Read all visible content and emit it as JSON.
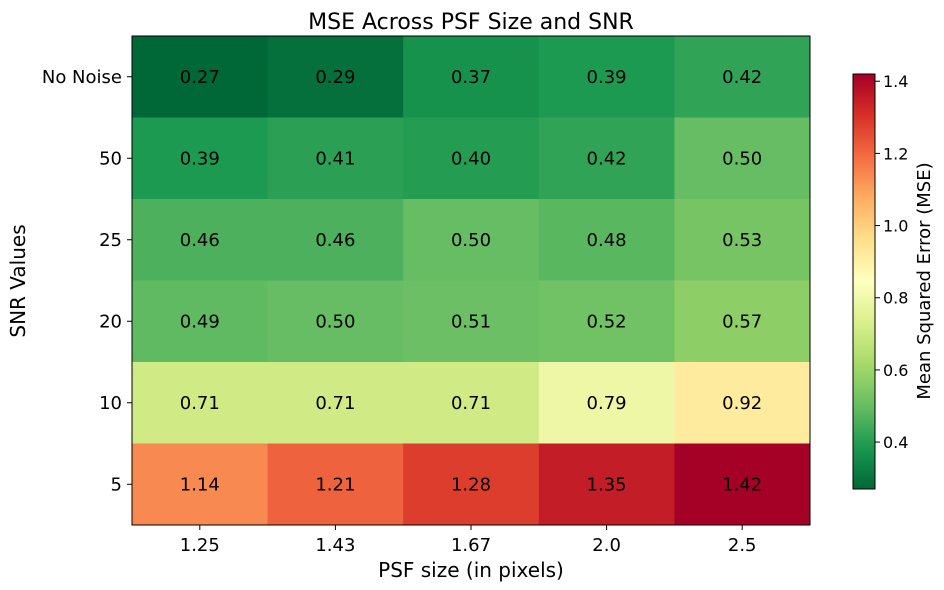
{
  "chart_data": {
    "type": "heatmap",
    "title": "MSE Across PSF Size and SNR",
    "xlabel": "PSF size (in pixels)",
    "ylabel": "SNR Values",
    "x_categories": [
      "1.25",
      "1.43",
      "1.67",
      "2.0",
      "2.5"
    ],
    "y_categories": [
      "No Noise",
      "50",
      "25",
      "20",
      "10",
      "5"
    ],
    "values": [
      [
        0.27,
        0.29,
        0.37,
        0.39,
        0.42
      ],
      [
        0.39,
        0.41,
        0.4,
        0.42,
        0.5
      ],
      [
        0.46,
        0.46,
        0.5,
        0.48,
        0.53
      ],
      [
        0.49,
        0.5,
        0.51,
        0.52,
        0.57
      ],
      [
        0.71,
        0.71,
        0.71,
        0.79,
        0.92
      ],
      [
        1.14,
        1.21,
        1.28,
        1.35,
        1.42
      ]
    ],
    "colormap": "RdYlGn_r",
    "colorbar": {
      "label": "Mean Squared Error (MSE)",
      "range": [
        0.27,
        1.42
      ],
      "ticks": [
        "0.4",
        "0.6",
        "0.8",
        "1.0",
        "1.2",
        "1.4"
      ]
    }
  }
}
